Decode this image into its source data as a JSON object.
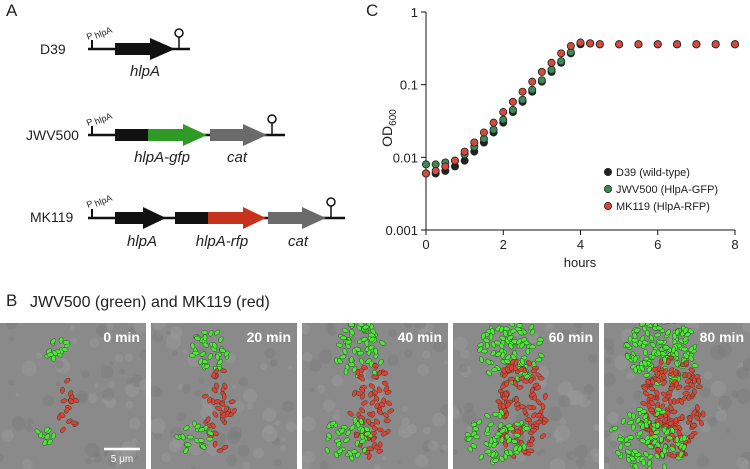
{
  "panel_labels": [
    "A",
    "B",
    "C"
  ],
  "constructs": [
    {
      "strain": "D39",
      "promoter": "P",
      "promoter_sub": "hlpA",
      "genes": [
        "hlpA"
      ]
    },
    {
      "strain": "JWV500",
      "promoter": "P",
      "promoter_sub": "hlpA",
      "genes": [
        "hlpA-gfp",
        "cat"
      ]
    },
    {
      "strain": "MK119",
      "promoter": "P",
      "promoter_sub": "hlpA",
      "genes": [
        "hlpA",
        "hlpA-rfp",
        "cat"
      ]
    }
  ],
  "timelapse": {
    "title": "JWV500 (green) and MK119 (red)",
    "frames": [
      "0 min",
      "20 min",
      "40 min",
      "60 min",
      "80 min"
    ],
    "scale_bar": "5 μm"
  },
  "chart_data": {
    "type": "scatter",
    "x_label": "hours",
    "y_label": "OD",
    "y_label_sub": "600",
    "log_y": true,
    "legend": "lower right",
    "x": [
      0,
      0.25,
      0.5,
      0.75,
      1,
      1.25,
      1.5,
      1.75,
      2,
      2.25,
      2.5,
      2.75,
      3,
      3.25,
      3.5,
      3.75,
      4,
      4.25,
      4.5,
      5,
      5.5,
      6,
      6.5,
      7,
      7.5,
      8
    ],
    "series": [
      {
        "name": "D39 (wild-type)",
        "color": "#222222",
        "values": [
          0.006,
          0.006,
          0.0065,
          0.0075,
          0.009,
          0.012,
          0.016,
          0.022,
          0.03,
          0.042,
          0.058,
          0.08,
          0.11,
          0.15,
          0.2,
          0.27,
          0.36,
          0.37,
          0.36,
          0.36,
          0.36,
          0.36,
          0.36,
          0.36,
          0.36,
          0.36
        ]
      },
      {
        "name": "JWV500 (HlpA-GFP)",
        "color": "#3b8a55",
        "values": [
          0.008,
          0.008,
          0.0085,
          0.009,
          0.011,
          0.014,
          0.018,
          0.024,
          0.033,
          0.045,
          0.062,
          0.085,
          0.115,
          0.16,
          0.21,
          0.28,
          0.37,
          0.37,
          0.36,
          0.36,
          0.36,
          0.36,
          0.36,
          0.36,
          0.36,
          0.36
        ]
      },
      {
        "name": "MK119 (HlpA-RFP)",
        "color": "#d24b3b",
        "values": [
          0.006,
          0.0065,
          0.0075,
          0.009,
          0.012,
          0.016,
          0.022,
          0.03,
          0.042,
          0.058,
          0.08,
          0.11,
          0.15,
          0.2,
          0.27,
          0.34,
          0.38,
          0.37,
          0.36,
          0.36,
          0.36,
          0.36,
          0.36,
          0.36,
          0.36,
          0.36
        ]
      }
    ],
    "xlim": [
      0,
      8
    ],
    "xticks": [
      0,
      2,
      4,
      6,
      8
    ],
    "ylim": [
      0.001,
      1
    ],
    "yticks": [
      0.001,
      0.01,
      0.1,
      1
    ]
  }
}
